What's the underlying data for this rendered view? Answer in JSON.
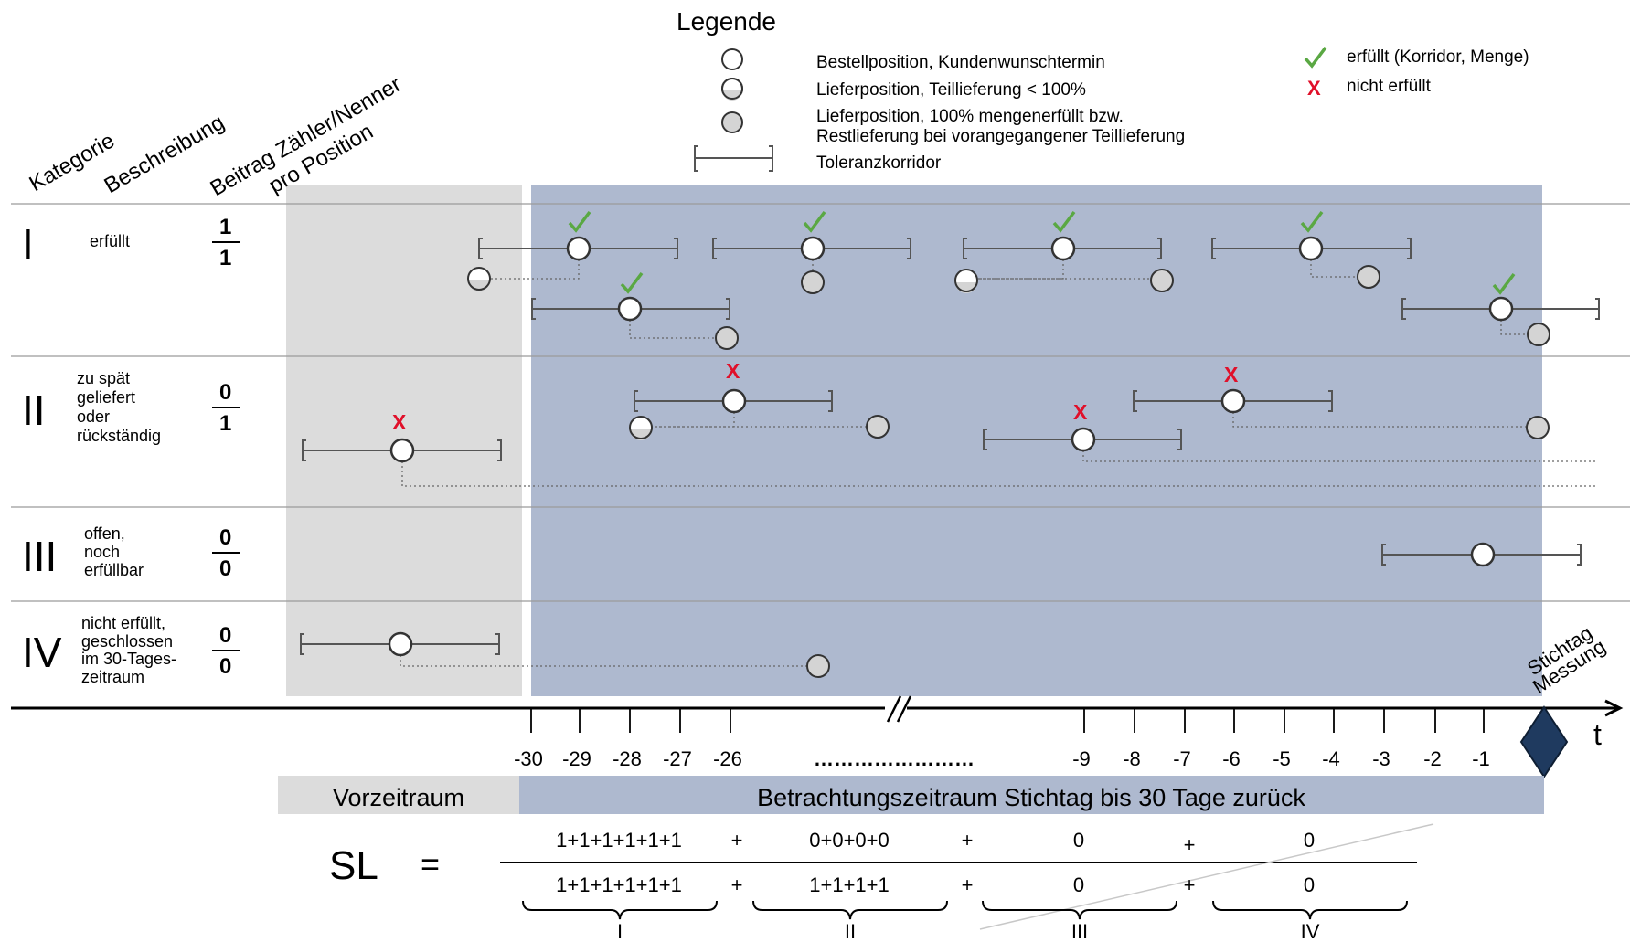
{
  "legend": {
    "title": "Legende",
    "items": [
      {
        "symbol": "circle-white-icon",
        "text": "Bestellposition, Kundenwunschtermin"
      },
      {
        "symbol": "circle-half-icon",
        "text": "Lieferposition, Teillieferung < 100%"
      },
      {
        "symbol": "circle-grey-icon",
        "text": "Lieferposition, 100% mengenerfüllt bzw.",
        "text2": "Restlieferung bei vorangegangener Teillieferung"
      },
      {
        "symbol": "bracket-corridor-icon",
        "text": "Toleranzkorridor"
      }
    ],
    "status": [
      {
        "symbol": "checkmark-icon",
        "text": "erfüllt (Korridor, Menge)",
        "color": "#5aa843"
      },
      {
        "symbol": "cross-icon",
        "text": "nicht erfüllt",
        "color": "#e0102a"
      }
    ]
  },
  "headers": {
    "kategorie": "Kategorie",
    "beschreibung": "Beschreibung",
    "beitrag_line1": "Beitrag Zähler/Nenner",
    "beitrag_line2": "pro Position"
  },
  "rows": [
    {
      "cat": "I",
      "desc": [
        "erfüllt"
      ],
      "num": "1",
      "den": "1"
    },
    {
      "cat": "II",
      "desc": [
        "zu spät",
        "geliefert",
        "oder",
        "rückständig"
      ],
      "num": "0",
      "den": "1"
    },
    {
      "cat": "III",
      "desc": [
        "offen,",
        "noch",
        "erfüllbar"
      ],
      "num": "0",
      "den": "0"
    },
    {
      "cat": "IV",
      "desc": [
        "nicht erfüllt,",
        "geschlossen",
        "im 30-Tages-",
        "zeitraum"
      ],
      "num": "0",
      "den": "0"
    }
  ],
  "axis": {
    "ticks_left": [
      "-30",
      "-29",
      "-28",
      "-27",
      "-26"
    ],
    "dots": "……………………",
    "ticks_right": [
      "-9",
      "-8",
      "-7",
      "-6",
      "-5",
      "-4",
      "-3",
      "-2",
      "-1"
    ],
    "t_label": "t",
    "stichtag_line1": "Stichtag",
    "stichtag_line2": "Messung"
  },
  "periods": {
    "vorzeitraum": "Vorzeitraum",
    "betrachtung": "Betrachtungszeitraum Stichtag bis 30 Tage zurück"
  },
  "formula": {
    "lhs": "SL",
    "eq": "=",
    "num_terms": [
      "1+1+1+1+1+1",
      "0+0+0+0",
      "0",
      "0"
    ],
    "den_terms": [
      "1+1+1+1+1+1",
      "1+1+1+1",
      "0",
      "0"
    ],
    "plus": "+",
    "groups": [
      "I",
      "II",
      "III",
      "IV"
    ]
  },
  "colors": {
    "grey_band": "#dcdcdc",
    "blue_band": "#aeb9cf",
    "check": "#5aa843",
    "cross": "#e0102a",
    "diamond": "#1f3a5f"
  }
}
